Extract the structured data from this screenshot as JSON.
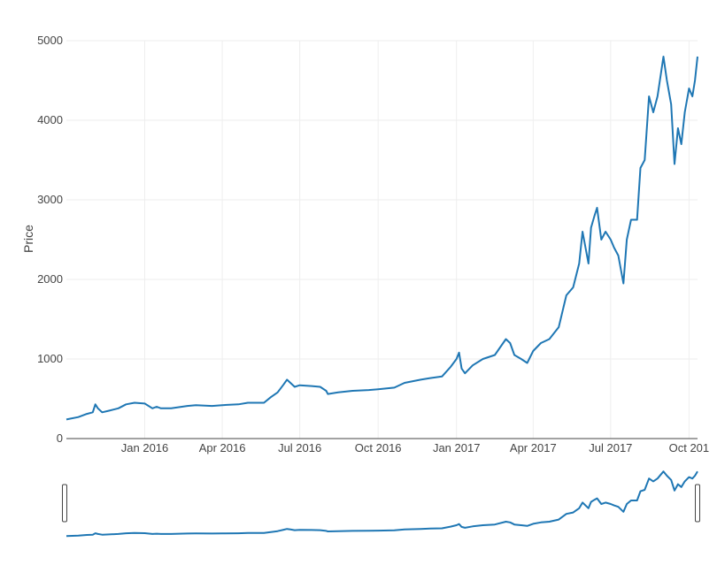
{
  "chart_data": {
    "type": "line",
    "ylabel": "Price",
    "xlabel": "",
    "ylim": [
      0,
      5000
    ],
    "xlim": [
      "2015-10-01",
      "2017-10-11"
    ],
    "grid": true,
    "colors": {
      "line": "#1f77b4",
      "grid": "#eeeeee",
      "axis": "#444444"
    },
    "yticks": [
      "0",
      "1000",
      "2000",
      "3000",
      "4000",
      "5000"
    ],
    "xticks": [
      {
        "label": "Jan 2016",
        "date": "2016-01-01"
      },
      {
        "label": "Apr 2016",
        "date": "2016-04-01"
      },
      {
        "label": "Jul 2016",
        "date": "2016-07-01"
      },
      {
        "label": "Oct 2016",
        "date": "2016-10-01"
      },
      {
        "label": "Jan 2017",
        "date": "2017-01-01"
      },
      {
        "label": "Apr 2017",
        "date": "2017-04-01"
      },
      {
        "label": "Jul 2017",
        "date": "2017-07-01"
      },
      {
        "label": "Oct 201",
        "date": "2017-10-01"
      }
    ],
    "series": [
      {
        "x": [
          "2015-10-01",
          "2015-10-15",
          "2015-10-25",
          "2015-11-01",
          "2015-11-04",
          "2015-11-07",
          "2015-11-12",
          "2015-11-20",
          "2015-12-01",
          "2015-12-10",
          "2015-12-20",
          "2016-01-01",
          "2016-01-10",
          "2016-01-15",
          "2016-01-20",
          "2016-02-01",
          "2016-02-20",
          "2016-03-01",
          "2016-03-20",
          "2016-04-01",
          "2016-04-20",
          "2016-05-01",
          "2016-05-20",
          "2016-05-28",
          "2016-06-05",
          "2016-06-12",
          "2016-06-16",
          "2016-06-20",
          "2016-06-25",
          "2016-07-01",
          "2016-07-15",
          "2016-07-25",
          "2016-08-01",
          "2016-08-03",
          "2016-08-15",
          "2016-09-01",
          "2016-09-20",
          "2016-10-01",
          "2016-10-20",
          "2016-11-01",
          "2016-11-20",
          "2016-12-01",
          "2016-12-15",
          "2016-12-25",
          "2017-01-01",
          "2017-01-04",
          "2017-01-07",
          "2017-01-11",
          "2017-01-20",
          "2017-02-01",
          "2017-02-15",
          "2017-02-28",
          "2017-03-05",
          "2017-03-10",
          "2017-03-18",
          "2017-03-25",
          "2017-04-01",
          "2017-04-10",
          "2017-04-20",
          "2017-05-01",
          "2017-05-10",
          "2017-05-18",
          "2017-05-25",
          "2017-05-29",
          "2017-06-05",
          "2017-06-08",
          "2017-06-12",
          "2017-06-15",
          "2017-06-20",
          "2017-06-25",
          "2017-07-01",
          "2017-07-05",
          "2017-07-10",
          "2017-07-16",
          "2017-07-20",
          "2017-07-25",
          "2017-08-01",
          "2017-08-05",
          "2017-08-10",
          "2017-08-15",
          "2017-08-20",
          "2017-08-25",
          "2017-09-01",
          "2017-09-05",
          "2017-09-10",
          "2017-09-14",
          "2017-09-18",
          "2017-09-22",
          "2017-09-26",
          "2017-10-01",
          "2017-10-05",
          "2017-10-08",
          "2017-10-11"
        ],
        "y": [
          240,
          270,
          310,
          330,
          430,
          380,
          330,
          350,
          380,
          430,
          450,
          440,
          380,
          400,
          380,
          380,
          410,
          420,
          410,
          420,
          430,
          450,
          450,
          520,
          580,
          680,
          740,
          700,
          650,
          670,
          660,
          650,
          600,
          560,
          580,
          600,
          610,
          620,
          640,
          700,
          740,
          760,
          780,
          900,
          1000,
          1080,
          880,
          820,
          920,
          1000,
          1050,
          1250,
          1200,
          1050,
          1000,
          950,
          1100,
          1200,
          1250,
          1400,
          1800,
          1900,
          2200,
          2600,
          2200,
          2650,
          2800,
          2900,
          2500,
          2600,
          2500,
          2400,
          2300,
          1950,
          2500,
          2750,
          2750,
          3400,
          3500,
          4300,
          4100,
          4300,
          4800,
          4500,
          4200,
          3450,
          3900,
          3700,
          4100,
          4400,
          4300,
          4500,
          4800
        ]
      }
    ]
  }
}
